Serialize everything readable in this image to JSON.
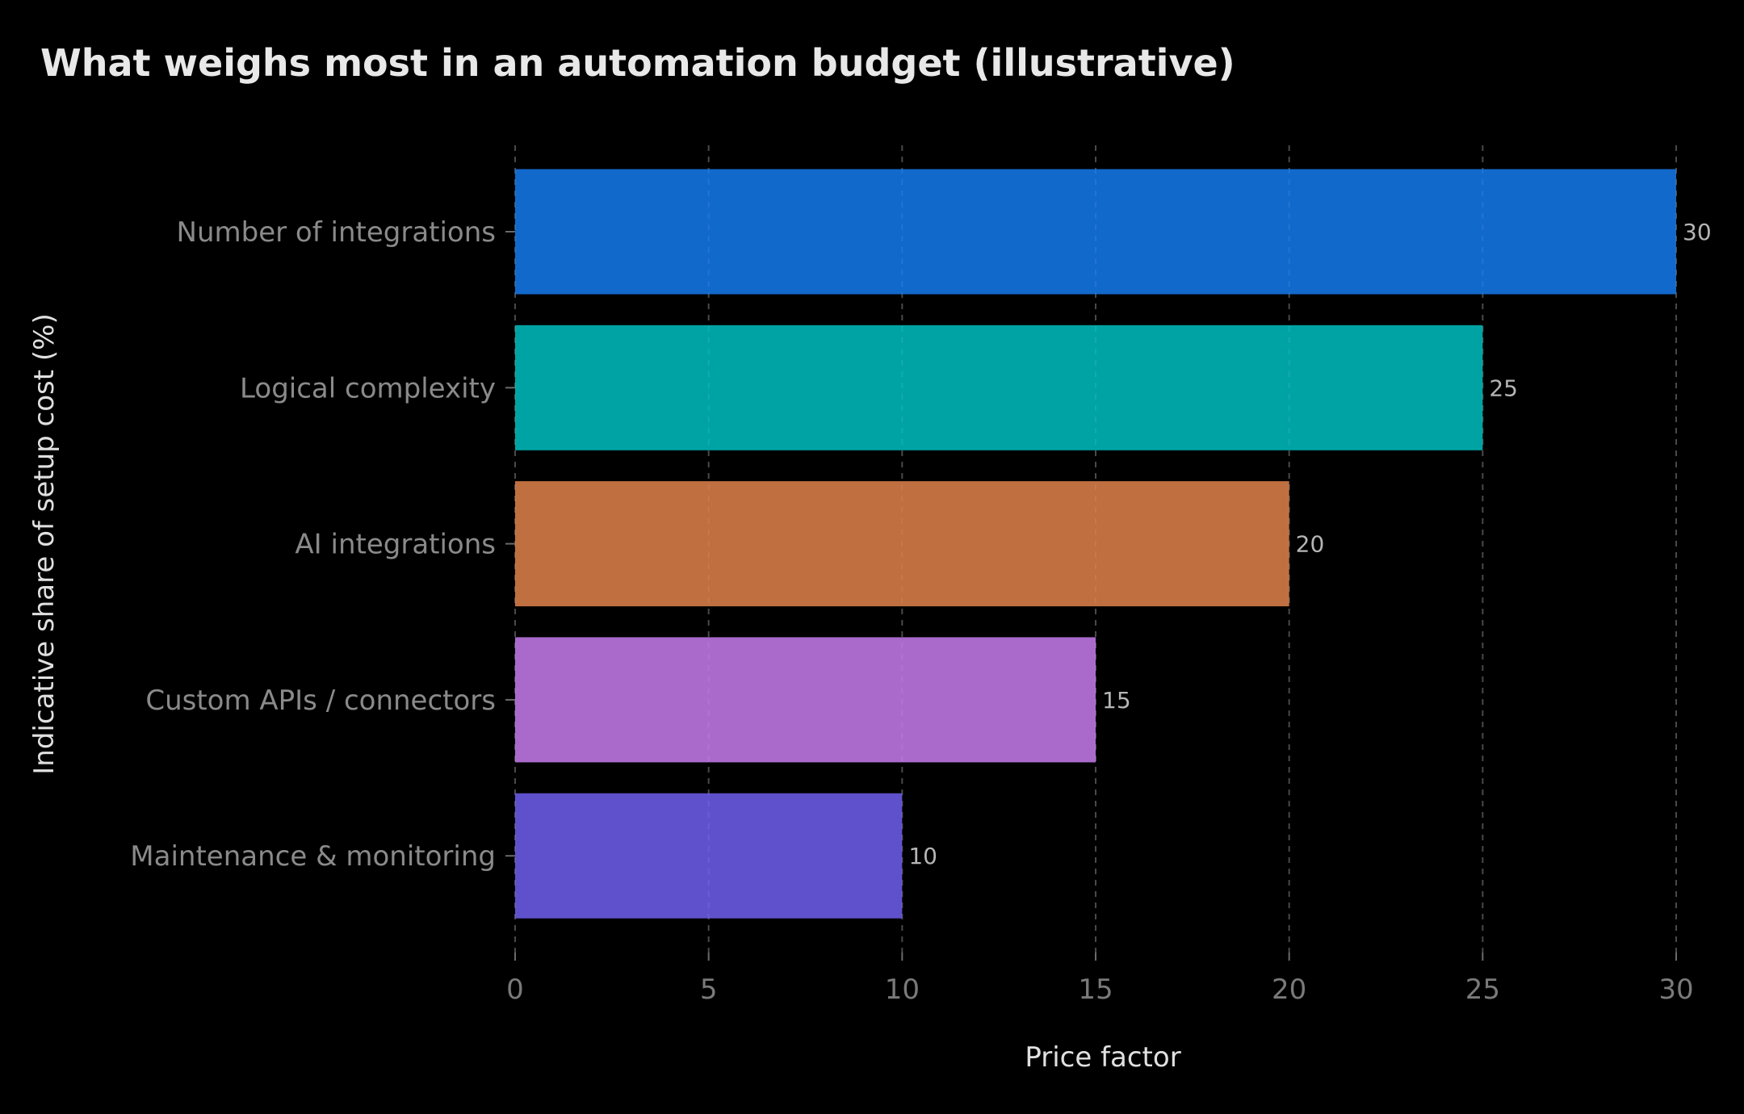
{
  "chart_data": {
    "type": "bar",
    "orientation": "horizontal",
    "title": "What weighs most in an automation budget (illustrative)",
    "xlabel": "Price factor",
    "ylabel": "Indicative share of setup cost (%)",
    "categories": [
      "Number of integrations",
      "Logical complexity",
      "AI integrations",
      "Custom APIs / connectors",
      "Maintenance & monitoring"
    ],
    "values": [
      30,
      25,
      20,
      15,
      10
    ],
    "value_labels": [
      "30",
      "25",
      "20",
      "15",
      "10"
    ],
    "bar_colors": [
      "#1269cc",
      "#00a3a3",
      "#bf6f40",
      "#a96acb",
      "#5f51cb"
    ],
    "xlim": [
      0,
      30
    ],
    "xticks": [
      0,
      5,
      10,
      15,
      20,
      25,
      30
    ],
    "xtick_labels": [
      "0",
      "5",
      "10",
      "15",
      "20",
      "25",
      "30"
    ],
    "grid": "vertical-dashed",
    "legend": "none"
  },
  "theme": {
    "background": "#000000",
    "title_color": "#e8e8e8",
    "category_label_color": "#8a8a8a",
    "tick_label_color": "#7a7a7a",
    "axis_title_color": "#e0e0e0",
    "value_label_color": "#b5b5b5",
    "grid_color": "#3a3a3a"
  }
}
